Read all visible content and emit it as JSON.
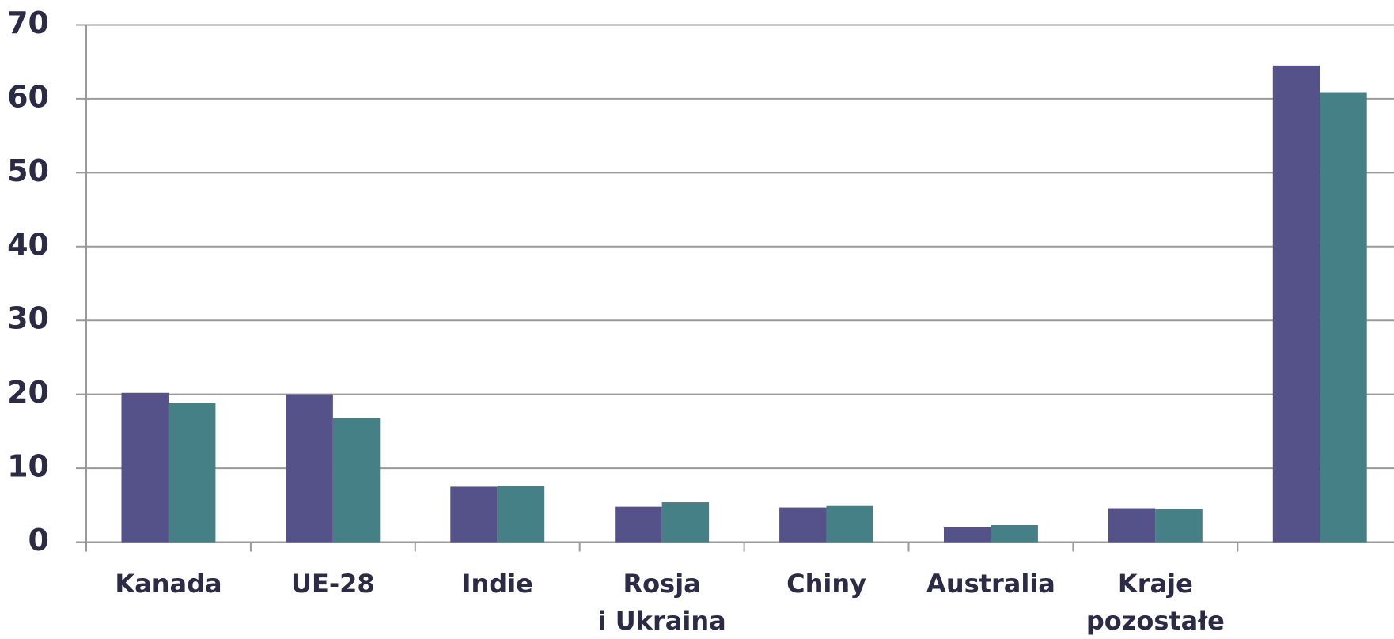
{
  "chart_data": {
    "type": "bar",
    "categories": [
      "Kanada",
      "UE-28",
      "Indie",
      "Rosja\ni Ukraina",
      "Chiny",
      "Australia",
      "Kraje\npozostałe",
      null
    ],
    "series": [
      {
        "color": "#55528a",
        "values": [
          20.2,
          20.0,
          7.5,
          4.8,
          4.7,
          2.0,
          4.6,
          64.5
        ]
      },
      {
        "color": "#448085",
        "values": [
          18.8,
          16.8,
          7.6,
          5.4,
          4.9,
          2.3,
          4.5,
          60.9
        ]
      }
    ],
    "ylim": [
      0,
      70
    ],
    "yticks": [
      0,
      10,
      20,
      30,
      40,
      50,
      60,
      70
    ],
    "grid": true
  }
}
